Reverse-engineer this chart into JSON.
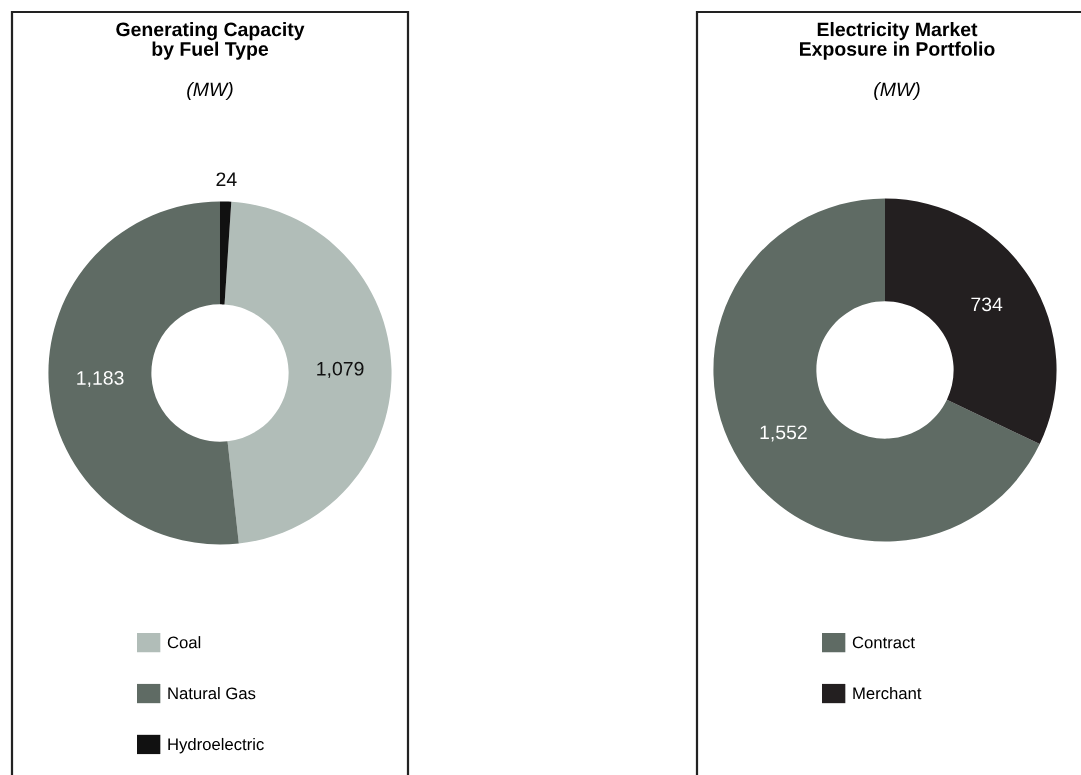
{
  "chart_data": [
    {
      "type": "donut",
      "title": "Generating Capacity\nby Fuel Type",
      "subtitle": "(MW)",
      "categories": [
        "Coal",
        "Natural Gas",
        "Hydroelectric"
      ],
      "values": [
        1079,
        1183,
        24
      ],
      "colors": [
        "#b1bdb8",
        "#5f6b64",
        "#111111"
      ],
      "value_labels": [
        "1,079",
        "1,183",
        "24"
      ],
      "legend": "bottom"
    },
    {
      "type": "donut",
      "title": "Electricity Market\nExposure in Portfolio",
      "subtitle": "(MW)",
      "categories": [
        "Contract",
        "Merchant"
      ],
      "values": [
        1552,
        734
      ],
      "colors": [
        "#5f6b64",
        "#231f20"
      ],
      "value_labels": [
        "1,552",
        "734"
      ],
      "legend": "bottom"
    }
  ]
}
